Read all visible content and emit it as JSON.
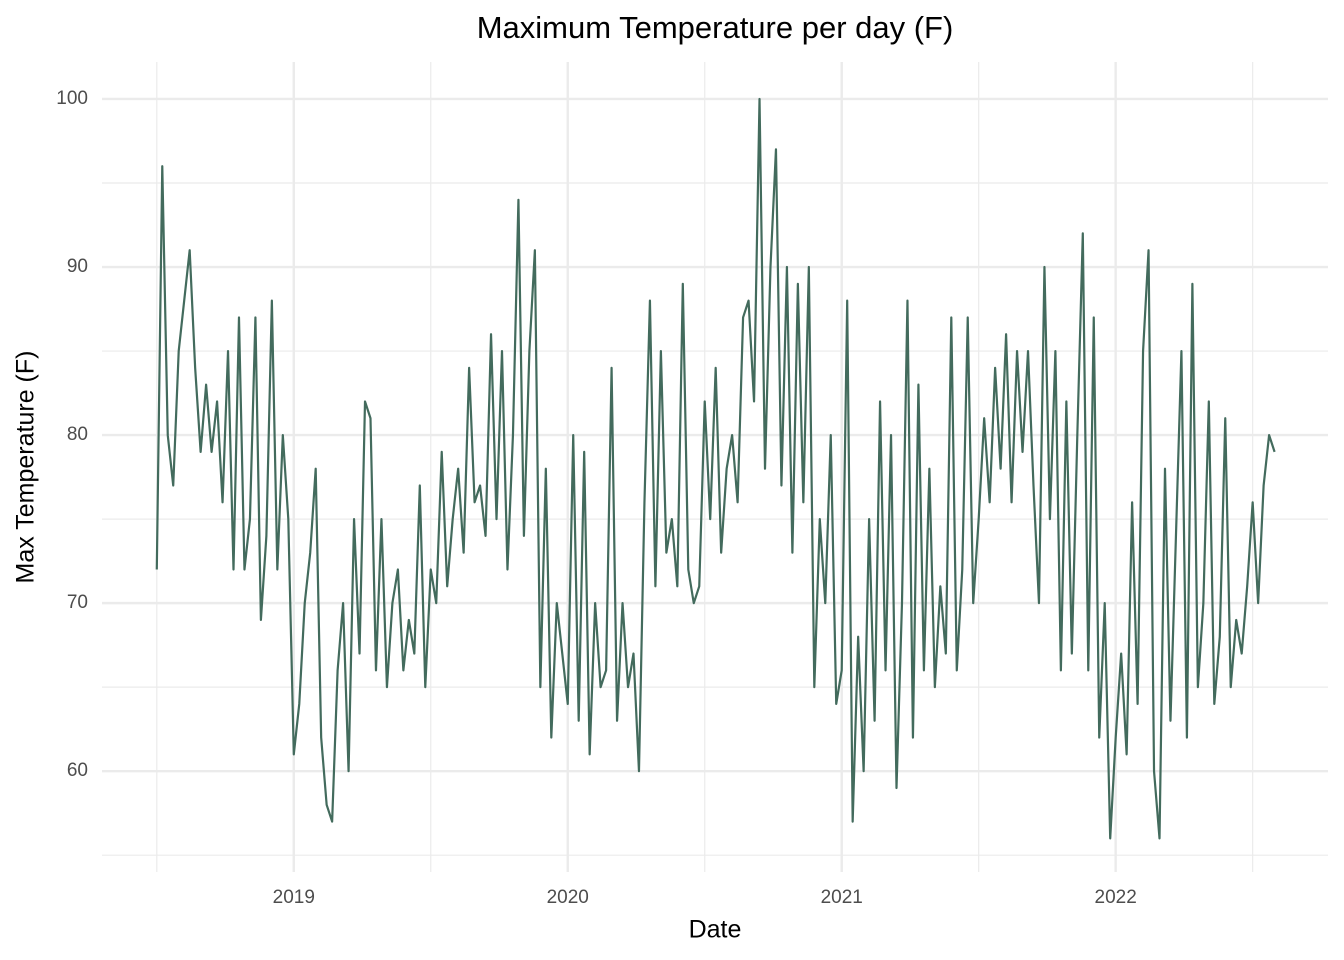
{
  "chart_data": {
    "type": "line",
    "title": "Maximum Temperature per day (F)",
    "x_label": "Date",
    "y_label": "Max Temperature (F)",
    "x": [
      2018.5,
      2018.52,
      2018.54,
      2018.56,
      2018.58,
      2018.6,
      2018.62,
      2018.64,
      2018.66,
      2018.68,
      2018.7,
      2018.72,
      2018.74,
      2018.76,
      2018.78,
      2018.8,
      2018.82,
      2018.84,
      2018.86,
      2018.88,
      2018.9,
      2018.92,
      2018.94,
      2018.96,
      2018.98,
      2019,
      2019.02,
      2019.04,
      2019.06,
      2019.08,
      2019.1,
      2019.12,
      2019.14,
      2019.16,
      2019.18,
      2019.2,
      2019.22,
      2019.24,
      2019.26,
      2019.28,
      2019.3,
      2019.32,
      2019.34,
      2019.36,
      2019.38,
      2019.4,
      2019.42,
      2019.44,
      2019.46,
      2019.48,
      2019.5,
      2019.52,
      2019.54,
      2019.56,
      2019.58,
      2019.6,
      2019.62,
      2019.64,
      2019.66,
      2019.68,
      2019.7,
      2019.72,
      2019.74,
      2019.76,
      2019.78,
      2019.8,
      2019.82,
      2019.84,
      2019.86,
      2019.88,
      2019.9,
      2019.92,
      2019.94,
      2019.96,
      2019.98,
      2020,
      2020.02,
      2020.04,
      2020.06,
      2020.08,
      2020.1,
      2020.12,
      2020.14,
      2020.16,
      2020.18,
      2020.2,
      2020.22,
      2020.24,
      2020.26,
      2020.28,
      2020.3,
      2020.32,
      2020.34,
      2020.36,
      2020.38,
      2020.4,
      2020.42,
      2020.44,
      2020.46,
      2020.48,
      2020.5,
      2020.52,
      2020.54,
      2020.56,
      2020.58,
      2020.6,
      2020.62,
      2020.64,
      2020.66,
      2020.68,
      2020.7,
      2020.72,
      2020.74,
      2020.76,
      2020.78,
      2020.8,
      2020.82,
      2020.84,
      2020.86,
      2020.88,
      2020.9,
      2020.92,
      2020.94,
      2020.96,
      2020.98,
      2021,
      2021.02,
      2021.04,
      2021.06,
      2021.08,
      2021.1,
      2021.12,
      2021.14,
      2021.16,
      2021.18,
      2021.2,
      2021.22,
      2021.24,
      2021.26,
      2021.28,
      2021.3,
      2021.32,
      2021.34,
      2021.36,
      2021.38,
      2021.4,
      2021.42,
      2021.44,
      2021.46,
      2021.48,
      2021.5,
      2021.52,
      2021.54,
      2021.56,
      2021.58,
      2021.6,
      2021.62,
      2021.64,
      2021.66,
      2021.68,
      2021.7,
      2021.72,
      2021.74,
      2021.76,
      2021.78,
      2021.8,
      2021.82,
      2021.84,
      2021.86,
      2021.88,
      2021.9,
      2021.92,
      2021.94,
      2021.96,
      2021.98,
      2022,
      2022.02,
      2022.04,
      2022.06,
      2022.08,
      2022.1,
      2022.12,
      2022.14,
      2022.16,
      2022.18,
      2022.2,
      2022.22,
      2022.24,
      2022.26,
      2022.28,
      2022.3,
      2022.32,
      2022.34,
      2022.36,
      2022.38,
      2022.4,
      2022.42,
      2022.44,
      2022.46,
      2022.48,
      2022.5,
      2022.52,
      2022.54,
      2022.56,
      2022.58
    ],
    "values": [
      72,
      96,
      80,
      77,
      85,
      88,
      91,
      84,
      79,
      83,
      79,
      82,
      76,
      85,
      72,
      87,
      72,
      75,
      87,
      69,
      74,
      88,
      72,
      80,
      75,
      61,
      64,
      70,
      73,
      78,
      62,
      58,
      57,
      66,
      70,
      60,
      75,
      67,
      82,
      81,
      66,
      75,
      65,
      70,
      72,
      66,
      69,
      67,
      77,
      65,
      72,
      70,
      79,
      71,
      75,
      78,
      73,
      84,
      76,
      77,
      74,
      86,
      75,
      85,
      72,
      80,
      94,
      74,
      85,
      91,
      65,
      78,
      62,
      70,
      67,
      64,
      80,
      63,
      79,
      61,
      70,
      65,
      66,
      84,
      63,
      70,
      65,
      67,
      60,
      76,
      88,
      71,
      85,
      73,
      75,
      71,
      89,
      72,
      70,
      71,
      82,
      75,
      84,
      73,
      78,
      80,
      76,
      87,
      88,
      82,
      100,
      78,
      90,
      97,
      77,
      90,
      73,
      89,
      76,
      90,
      65,
      75,
      70,
      80,
      64,
      66,
      88,
      57,
      68,
      60,
      75,
      63,
      82,
      66,
      80,
      59,
      70,
      88,
      62,
      83,
      66,
      78,
      65,
      71,
      67,
      87,
      66,
      72,
      87,
      70,
      75,
      81,
      76,
      84,
      78,
      86,
      76,
      85,
      79,
      85,
      77,
      70,
      90,
      75,
      85,
      66,
      82,
      67,
      80,
      92,
      66,
      87,
      62,
      70,
      56,
      62,
      67,
      61,
      76,
      64,
      85,
      91,
      60,
      56,
      78,
      63,
      74,
      85,
      62,
      89,
      65,
      70,
      82,
      64,
      68,
      81,
      65,
      69,
      67,
      71,
      76,
      70,
      77,
      80,
      79
    ],
    "color": "#436b5d",
    "xlim": [
      2018.3,
      2022.775
    ],
    "xticks": [
      2019,
      2020,
      2021,
      2022
    ],
    "x_minor_ticks": [
      2018.5,
      2019.5,
      2020.5,
      2021.5,
      2022.5
    ],
    "ylim": [
      54,
      102.2
    ],
    "yticks": [
      60,
      70,
      80,
      90,
      100
    ],
    "y_minor_ticks": [
      55,
      65,
      75,
      85,
      95
    ],
    "grid": true
  }
}
